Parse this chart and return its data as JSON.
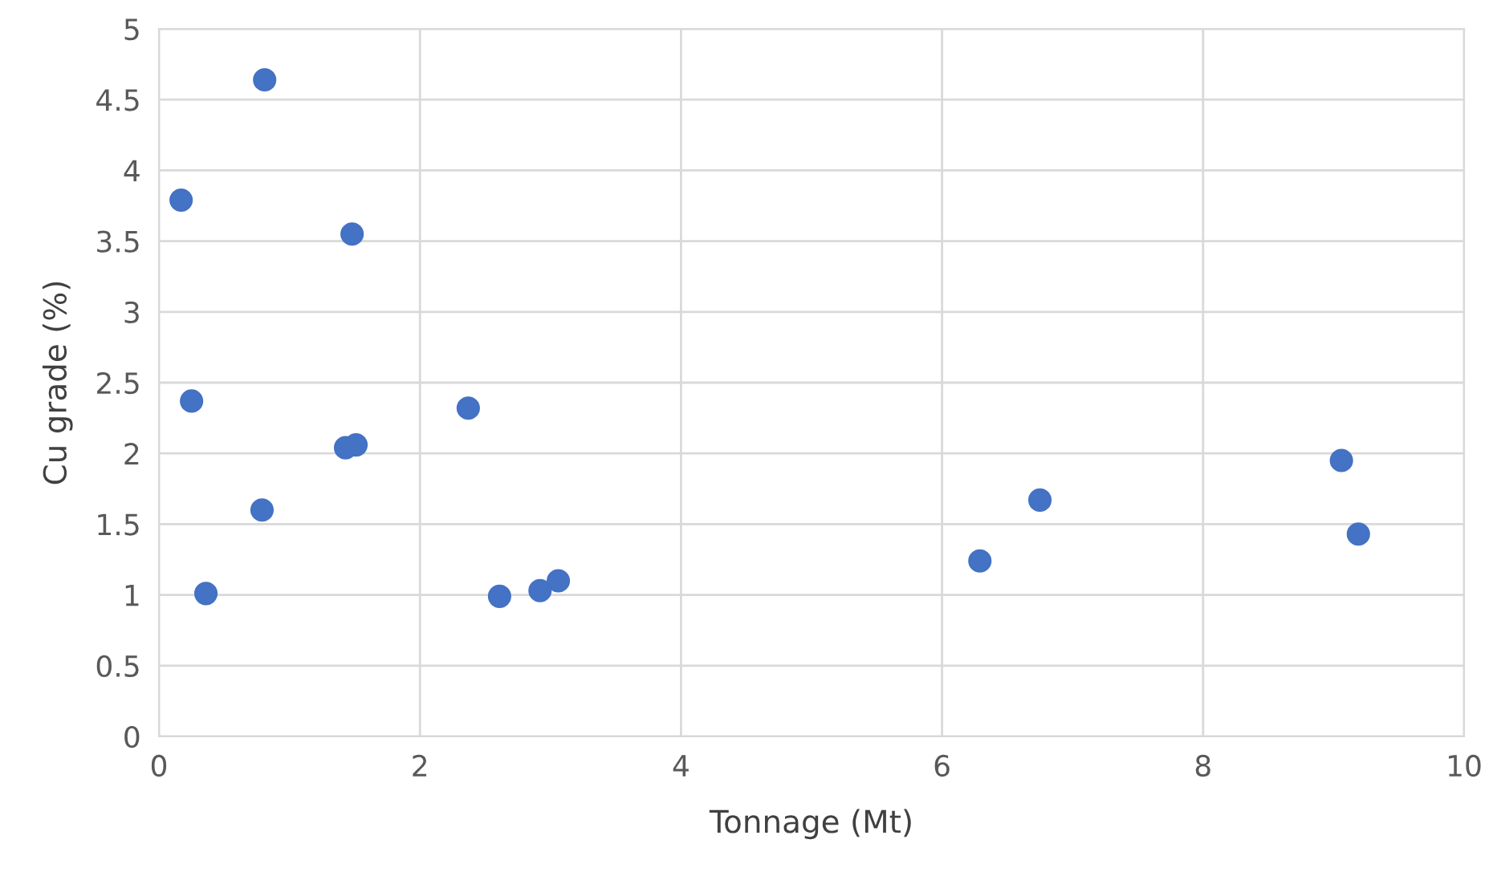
{
  "chart_data": {
    "type": "scatter",
    "xlabel": "Tonnage (Mt)",
    "ylabel": "Cu grade (%)",
    "x": [
      0.17,
      0.81,
      1.48,
      0.25,
      2.37,
      1.43,
      1.51,
      0.79,
      0.36,
      2.61,
      2.92,
      3.06,
      6.29,
      6.75,
      9.06,
      9.19
    ],
    "series": [
      {
        "color": "#4472c4",
        "values": [
          3.79,
          4.64,
          3.55,
          2.37,
          2.32,
          2.04,
          2.06,
          1.6,
          1.01,
          0.99,
          1.03,
          1.1,
          1.24,
          1.67,
          1.95,
          1.43
        ]
      }
    ],
    "xlim": [
      0,
      10
    ],
    "xticks": [
      0,
      2,
      4,
      6,
      8,
      10
    ],
    "ylim": [
      0,
      5
    ],
    "yticks": [
      0,
      {
        "value": 0.5,
        "label": "0.5"
      },
      1,
      {
        "value": 1.5,
        "label": "1.5"
      },
      2,
      {
        "value": 2.5,
        "label": "2.5"
      },
      3,
      {
        "value": 3.5,
        "label": "3.5"
      },
      4,
      {
        "value": 4.5,
        "label": "4.5"
      },
      5
    ],
    "grid": true,
    "marker": "circle"
  }
}
